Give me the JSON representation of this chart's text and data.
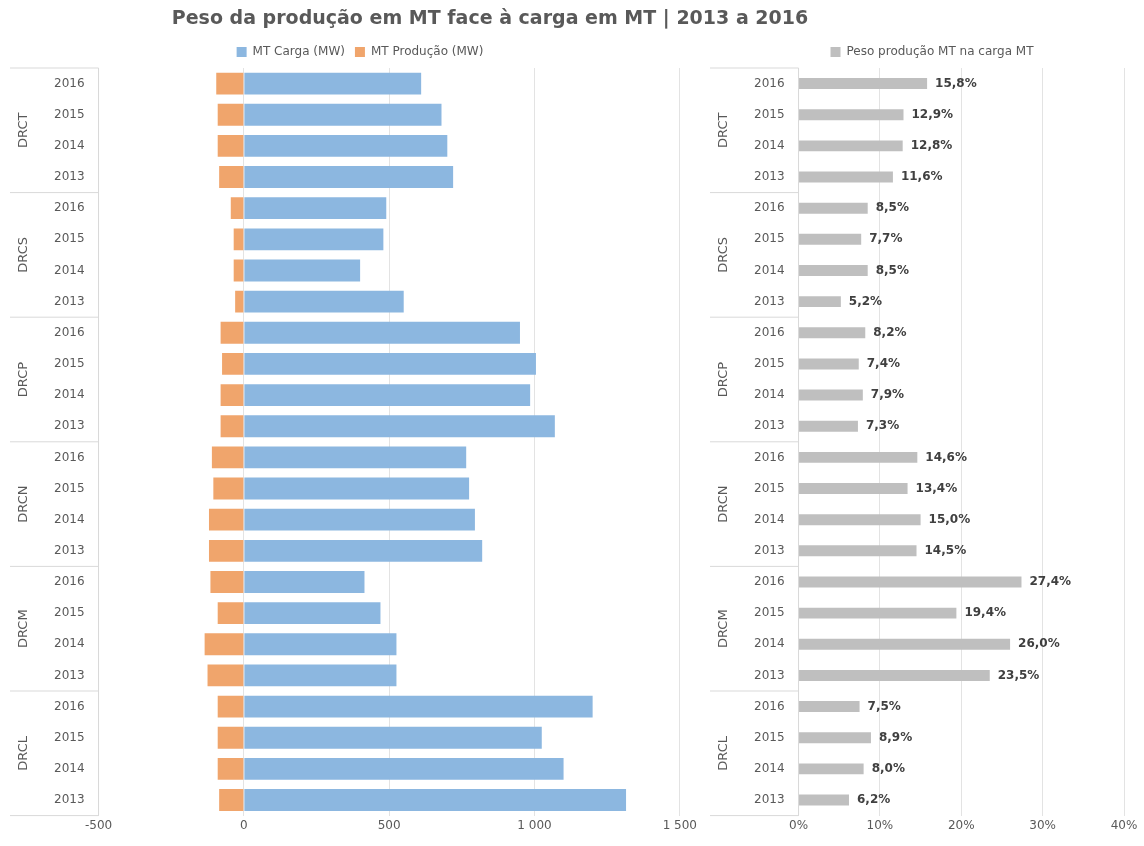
{
  "chart_data": [
    {
      "type": "bar",
      "title": "Peso da produção em MT face à carga em MT | 2013 a 2016",
      "orientation": "horizontal",
      "stacked": true,
      "grid": "x",
      "legend": "top",
      "categories": [
        "2016",
        "2015",
        "2014",
        "2013",
        "2016",
        "2015",
        "2014",
        "2013",
        "2016",
        "2015",
        "2014",
        "2013",
        "2016",
        "2015",
        "2014",
        "2013",
        "2016",
        "2015",
        "2014",
        "2013",
        "2016",
        "2015",
        "2014",
        "2013"
      ],
      "annotations": [
        "DRCT",
        "DRCS",
        "DRCP",
        "DRCN",
        "DRCM",
        "DRCL"
      ],
      "xlim": [
        -500,
        1500
      ],
      "xticks": [
        -500,
        0,
        500,
        {
          "value": 1000,
          "label": "1 000"
        },
        {
          "value": 1500,
          "label": "1 500"
        }
      ],
      "series": [
        {
          "name": "MT Carga (MW)",
          "color": "#8cb7e0",
          "values": [
            610,
            680,
            700,
            720,
            490,
            480,
            400,
            550,
            950,
            1005,
            985,
            1070,
            765,
            775,
            795,
            820,
            415,
            470,
            525,
            525,
            1200,
            1025,
            1100,
            1315
          ]
        },
        {
          "name": "MT Produção (MW)",
          "color": "#f0a56c",
          "values": [
            -95,
            -90,
            -90,
            -85,
            -45,
            -35,
            -35,
            -30,
            -80,
            -75,
            -80,
            -80,
            -110,
            -105,
            -120,
            -120,
            -115,
            -90,
            -135,
            -125,
            -90,
            -90,
            -90,
            -85
          ]
        }
      ]
    },
    {
      "type": "bar",
      "orientation": "horizontal",
      "grid": "x",
      "legend": "top",
      "categories": [
        "2016",
        "2015",
        "2014",
        "2013",
        "2016",
        "2015",
        "2014",
        "2013",
        "2016",
        "2015",
        "2014",
        "2013",
        "2016",
        "2015",
        "2014",
        "2013",
        "2016",
        "2015",
        "2014",
        "2013",
        "2016",
        "2015",
        "2014",
        "2013"
      ],
      "annotations": [
        "DRCT",
        "DRCS",
        "DRCP",
        "DRCN",
        "DRCM",
        "DRCL"
      ],
      "xlim": [
        0,
        40
      ],
      "xticks": [
        {
          "value": 0,
          "label": "0%"
        },
        {
          "value": 10,
          "label": "10%"
        },
        {
          "value": 20,
          "label": "20%"
        },
        {
          "value": 30,
          "label": "30%"
        },
        {
          "value": 40,
          "label": "40%"
        }
      ],
      "series": [
        {
          "name": "Peso produção MT na carga MT",
          "color": "#bfbfbf",
          "values": [
            15.8,
            12.9,
            12.8,
            11.6,
            8.5,
            7.7,
            8.5,
            5.2,
            8.2,
            7.4,
            7.9,
            7.3,
            14.6,
            13.4,
            15.0,
            14.5,
            27.4,
            19.4,
            26.0,
            23.5,
            7.5,
            8.9,
            8.0,
            6.2
          ],
          "value_labels": [
            "15,8%",
            "12,9%",
            "12,8%",
            "11,6%",
            "8,5%",
            "7,7%",
            "8,5%",
            "5,2%",
            "8,2%",
            "7,4%",
            "7,9%",
            "7,3%",
            "14,6%",
            "13,4%",
            "15,0%",
            "14,5%",
            "27,4%",
            "19,4%",
            "26,0%",
            "23,5%",
            "7,5%",
            "8,9%",
            "8,0%",
            "6,2%"
          ]
        }
      ]
    }
  ]
}
